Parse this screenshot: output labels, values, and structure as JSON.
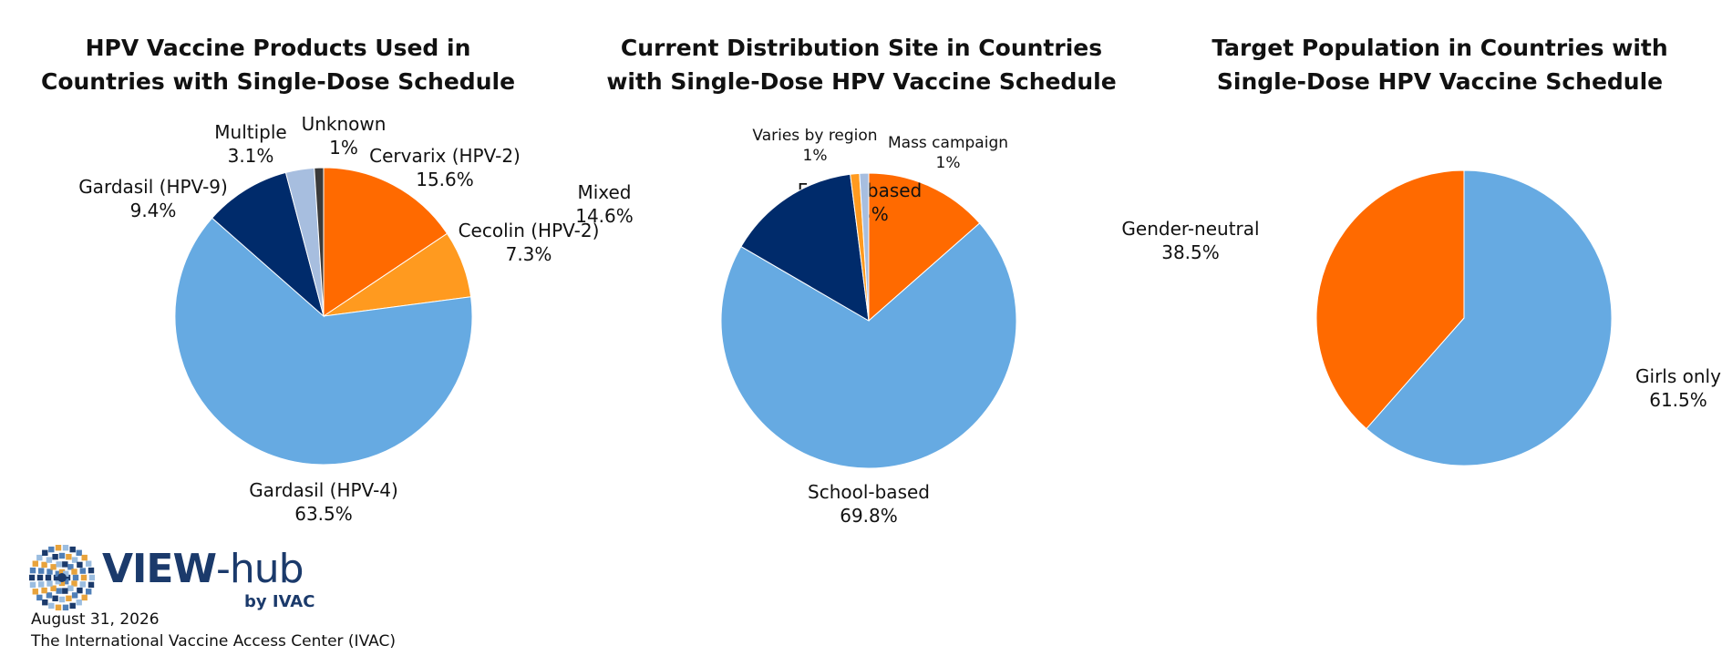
{
  "chart_data": [
    {
      "type": "pie",
      "title_lines": [
        "HPV Vaccine Products Used in",
        "Countries with Single-Dose Schedule"
      ],
      "slices": [
        {
          "label": "Cervarix (HPV-2)",
          "pct_text": "15.6%",
          "value": 15.6,
          "color": "#ff6a00"
        },
        {
          "label": "Cecolin (HPV-2)",
          "pct_text": "7.3%",
          "value": 7.3,
          "color": "#ff9a1f"
        },
        {
          "label": "Gardasil (HPV-4)",
          "pct_text": "63.5%",
          "value": 63.5,
          "color": "#66aae2"
        },
        {
          "label": "Gardasil (HPV-9)",
          "pct_text": "9.4%",
          "value": 9.4,
          "color": "#002b6b"
        },
        {
          "label": "Multiple",
          "pct_text": "3.1%",
          "value": 3.1,
          "color": "#a7bedf"
        },
        {
          "label": "Unknown",
          "pct_text": "1%",
          "value": 1.0,
          "color": "#3a3a3a"
        }
      ]
    },
    {
      "type": "pie",
      "title_lines": [
        "Current Distribution Site in Countries",
        "with Single-Dose HPV Vaccine Schedule"
      ],
      "slices": [
        {
          "label": "Facility-based",
          "pct_text": "13.5%",
          "value": 13.5,
          "color": "#ff6a00"
        },
        {
          "label": "School-based",
          "pct_text": "69.8%",
          "value": 69.8,
          "color": "#66aae2"
        },
        {
          "label": "Mixed",
          "pct_text": "14.6%",
          "value": 14.6,
          "color": "#002b6b"
        },
        {
          "label": "Varies by region",
          "pct_text": "1%",
          "value": 1.0,
          "color": "#ff9a1f"
        },
        {
          "label": "Mass campaign",
          "pct_text": "1%",
          "value": 1.0,
          "color": "#a7bedf"
        }
      ]
    },
    {
      "type": "pie",
      "title_lines": [
        "Target Population in Countries with",
        "Single-Dose HPV Vaccine Schedule"
      ],
      "slices": [
        {
          "label": "Girls only",
          "pct_text": "61.5%",
          "value": 61.5,
          "color": "#66aae2"
        },
        {
          "label": "Gender-neutral",
          "pct_text": "38.5%",
          "value": 38.5,
          "color": "#ff6a00"
        }
      ]
    }
  ],
  "branding": {
    "logo_word_bold": "VIEW",
    "logo_word_rest": "-hub",
    "logo_byline": "by IVAC"
  },
  "footer": {
    "date": "August 31, 2026",
    "organization": "The International Vaccine Access Center (IVAC)"
  }
}
